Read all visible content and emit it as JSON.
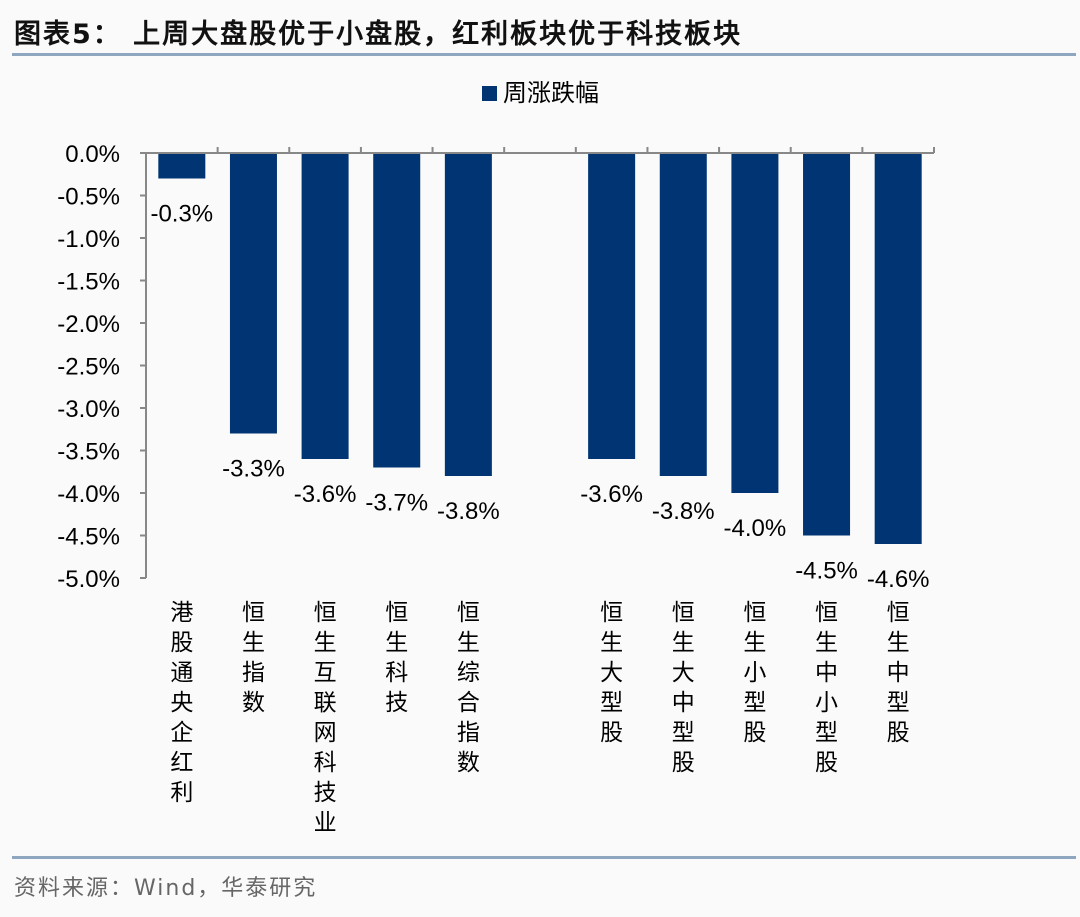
{
  "title": "图表5： 上周大盘股优于小盘股，红利板块优于科技板块",
  "footer": "资料来源：Wind，华泰研究",
  "chart_data": {
    "type": "bar",
    "categories": [
      "港股通央企红利",
      "恒生指数",
      "恒生互联网科技业",
      "恒生科技",
      "恒生综合指数",
      "",
      "恒生大型股",
      "恒生大中型股",
      "恒生小型股",
      "恒生中小型股",
      "恒生中型股"
    ],
    "series": [
      {
        "name": "周涨跌幅",
        "values": [
          -0.3,
          -3.3,
          -3.6,
          -3.7,
          -3.8,
          null,
          -3.6,
          -3.8,
          -4.0,
          -4.5,
          -4.6
        ],
        "color": "#003473"
      }
    ],
    "data_labels": [
      "-0.3%",
      "-3.3%",
      "-3.6%",
      "-3.7%",
      "-3.8%",
      "",
      "-3.6%",
      "-3.8%",
      "-4.0%",
      "-4.5%",
      "-4.6%"
    ],
    "yticks": [
      "0.0%",
      "-0.5%",
      "-1.0%",
      "-1.5%",
      "-2.0%",
      "-2.5%",
      "-3.0%",
      "-3.5%",
      "-4.0%",
      "-4.5%",
      "-5.0%"
    ],
    "ylim": [
      -5.0,
      0.0
    ],
    "grid": false,
    "legend": "top-center",
    "rule_color": "#8ea6c0"
  }
}
